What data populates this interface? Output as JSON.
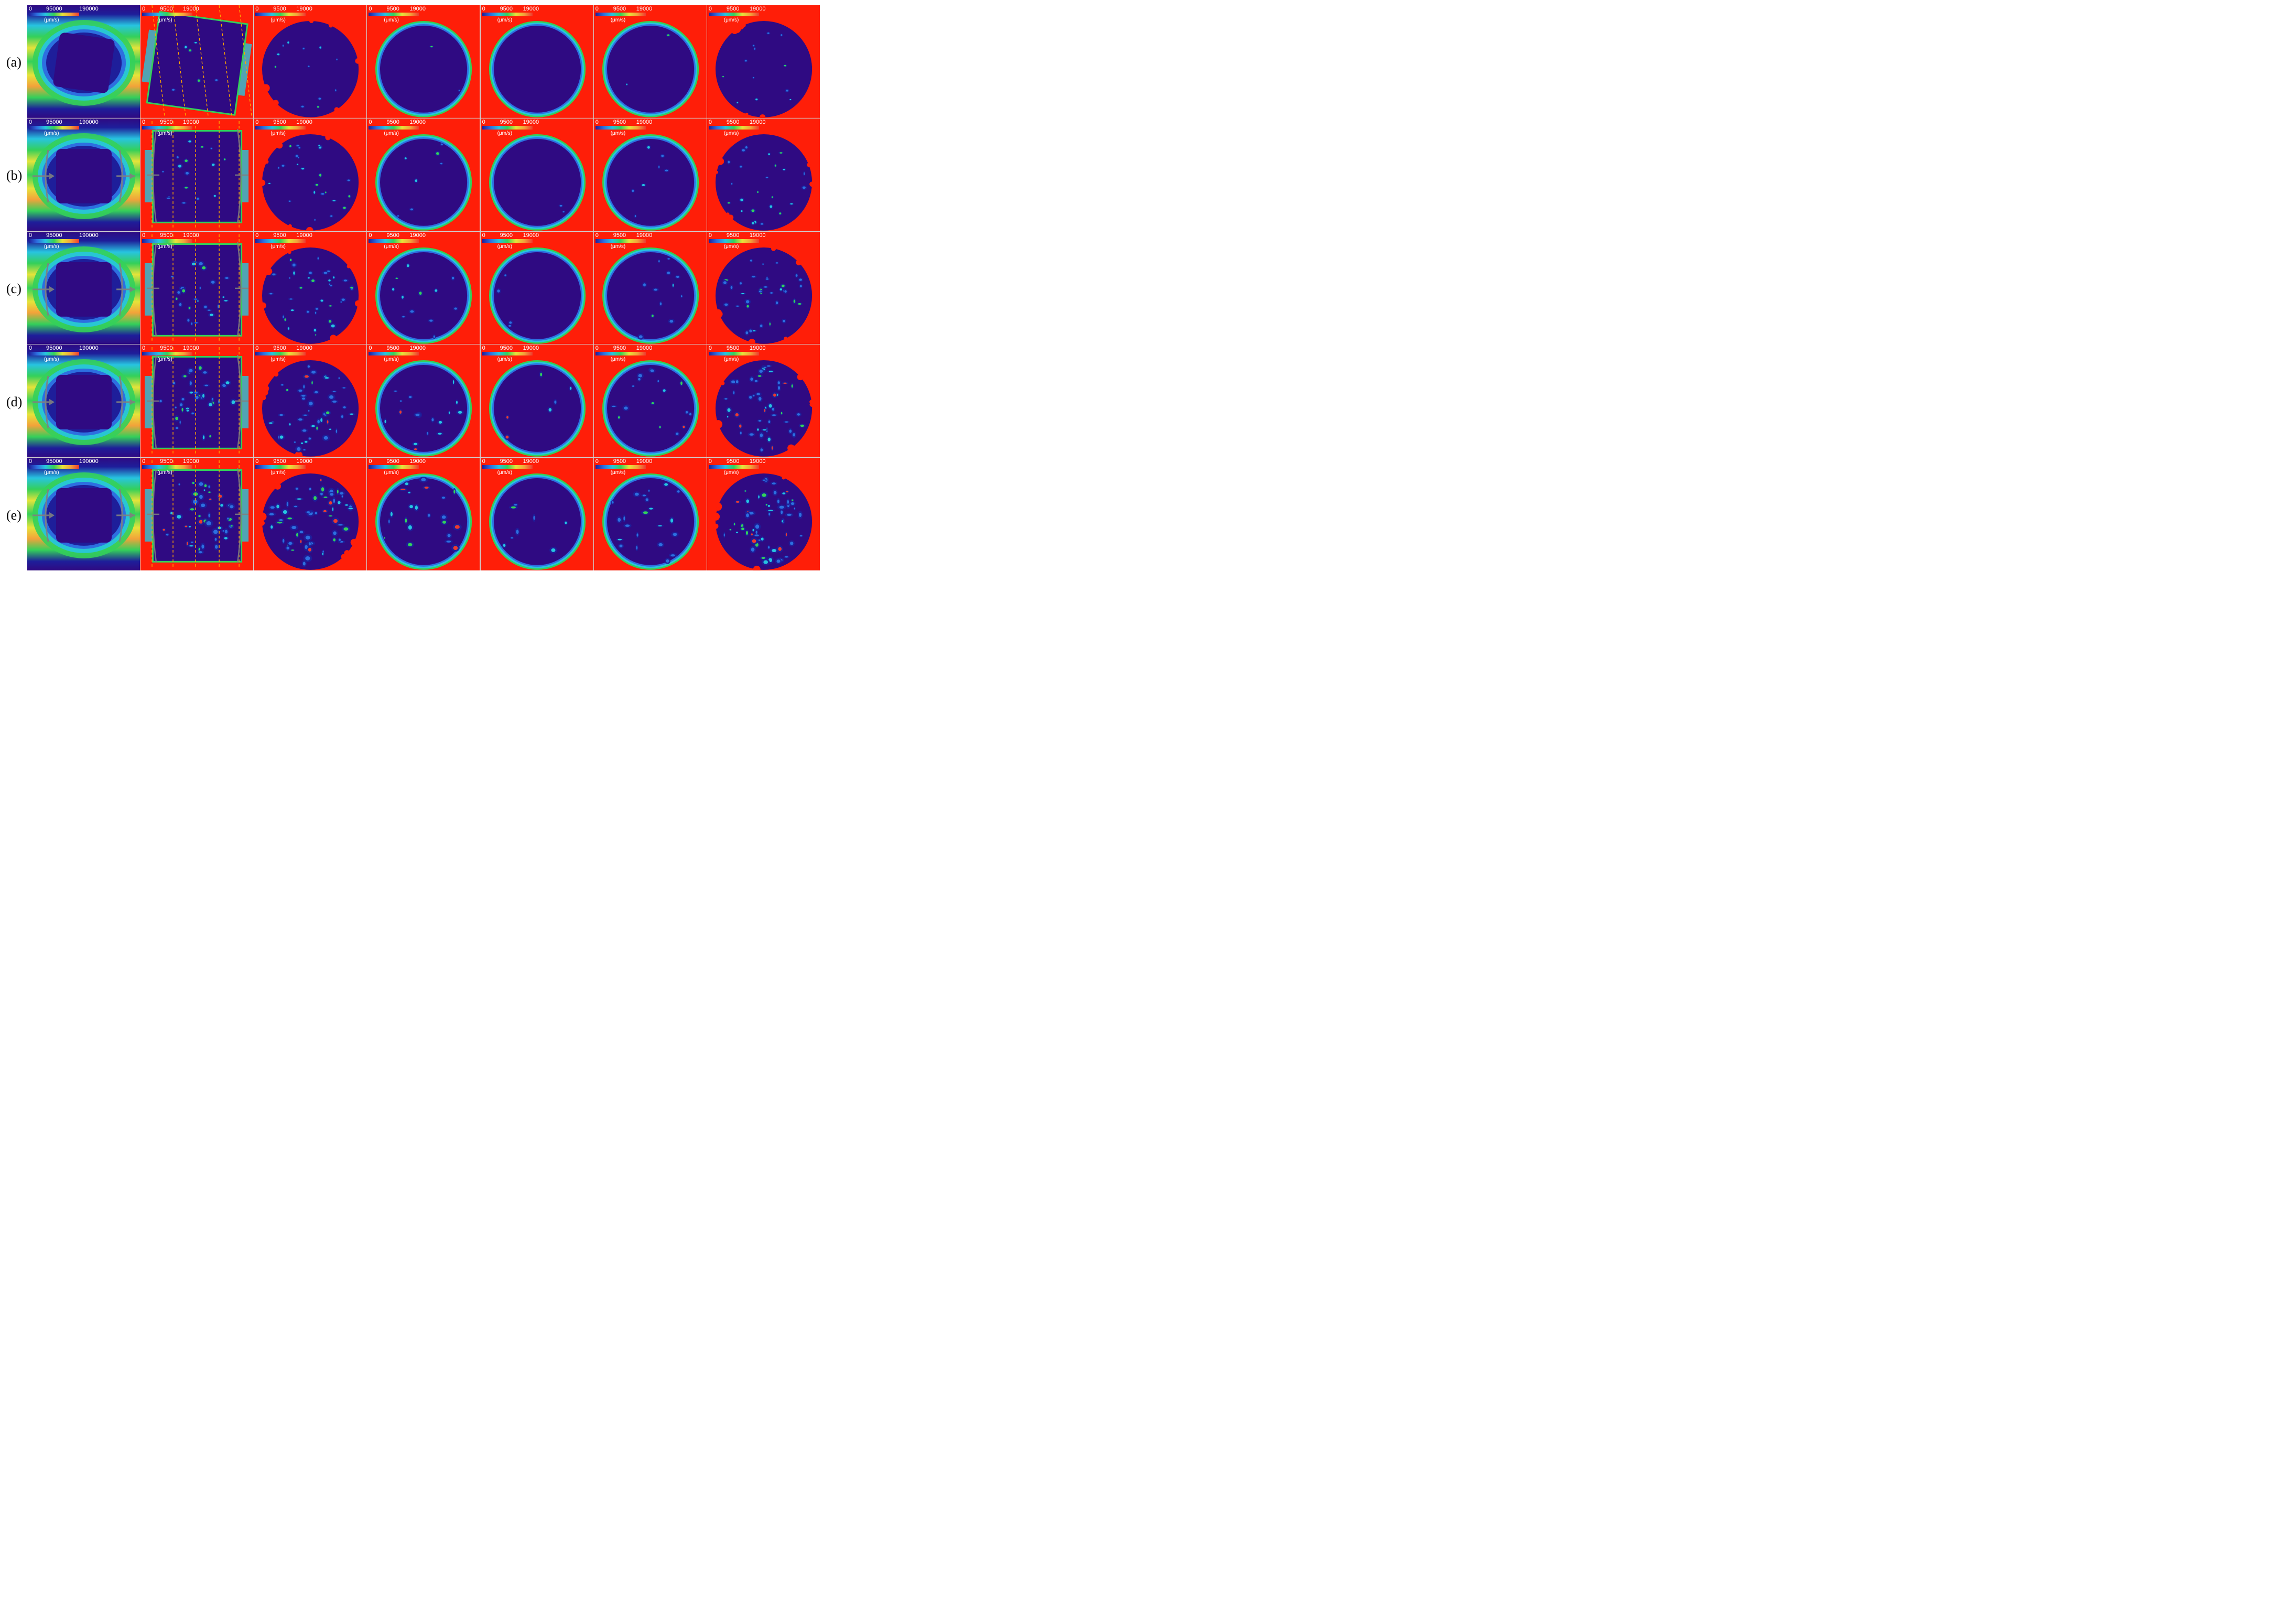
{
  "row_labels": [
    "(a)",
    "(b)",
    "(c)",
    "(d)",
    "(e)"
  ],
  "colorbars": {
    "column_1": {
      "ticks": [
        "0",
        "95000",
        "190000"
      ],
      "unit": "(μm/s)"
    },
    "columns_2_7": {
      "ticks": [
        "0",
        "9500",
        "19000"
      ],
      "unit": "(μm/s)"
    }
  },
  "colors": {
    "background_field": "#ff1e08",
    "interior_low": "#2f0a82",
    "deep_blue": "#1e1e9a",
    "blue": "#2d6fe0",
    "cyan": "#27c4e0",
    "green": "#34d05a",
    "yellow": "#e6e33a",
    "orange": "#f2a23a",
    "red": "#ee3a2f",
    "dashed_lines": "#ffa500",
    "arrows": "#808080"
  }
}
